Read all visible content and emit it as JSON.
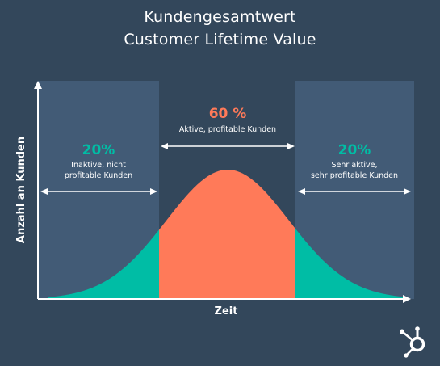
{
  "title_line1": "Kundengesamtwert",
  "title_line2": "Customer Lifetime Value",
  "colors": {
    "background": "#33475b",
    "panel": "#425b76",
    "curve_center": "#ff7a59",
    "curve_sides": "#00bda5",
    "white": "#ffffff",
    "teal_text": "#00bda5",
    "orange_text": "#ff7a59"
  },
  "chart_data": {
    "type": "area",
    "xlabel": "Zeit",
    "ylabel": "Anzahl an Kunden",
    "grid": false,
    "distribution": "normal",
    "segments": [
      {
        "percent": "20%",
        "label_line1": "Inaktive, nicht",
        "label_line2": "profitable Kunden",
        "share": 20,
        "color": "teal"
      },
      {
        "percent": "60 %",
        "label_line1": "Aktive, profitable Kunden",
        "label_line2": "",
        "share": 60,
        "color": "orange"
      },
      {
        "percent": "20%",
        "label_line1": "Sehr aktive,",
        "label_line2": "sehr profitable Kunden",
        "share": 20,
        "color": "teal"
      }
    ]
  },
  "logo": "hubspot-logo"
}
